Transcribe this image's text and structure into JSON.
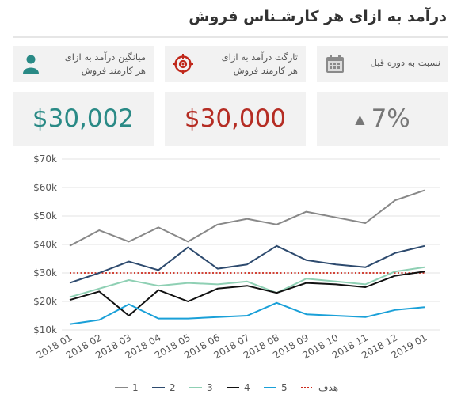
{
  "header": {
    "title": "درآمد به ازای هر کارشـناس فروش"
  },
  "kpis": [
    {
      "label_line1": "میانگین درآمد به ازای",
      "label_line2": "هر کارمند فروش",
      "icon": "person-icon",
      "value": "$30,002",
      "color": "#2a8a86"
    },
    {
      "label_line1": "تارگت درآمد به ازای",
      "label_line2": "هر کارمند فروش",
      "icon": "target-icon",
      "value": "$30,000",
      "color": "#b52d24"
    },
    {
      "label_line1": "نسبت به دوره قبل",
      "label_line2": "",
      "icon": "calendar-icon",
      "value": "7%",
      "trend": "▲",
      "color": "#777777"
    }
  ],
  "chart_data": {
    "type": "line",
    "categories": [
      "2018 01",
      "2018 02",
      "2018 03",
      "2018 04",
      "2018 05",
      "2018 06",
      "2018 07",
      "2018 08",
      "2018 09",
      "2018 10",
      "2018 11",
      "2018 12",
      "2019 01"
    ],
    "y_tick_labels": [
      "$10k",
      "$20k",
      "$30k",
      "$40k",
      "$50k",
      "$60k",
      "$70k"
    ],
    "ylim": [
      10000,
      70000
    ],
    "grid": true,
    "legend": "bottom",
    "series": [
      {
        "name": "1",
        "color": "#888888",
        "values": [
          39500,
          45000,
          41000,
          46000,
          41000,
          47000,
          49000,
          47000,
          51500,
          49500,
          47500,
          55500,
          59000
        ]
      },
      {
        "name": "2",
        "color": "#2d4a6e",
        "values": [
          26500,
          30000,
          34000,
          31000,
          39000,
          31500,
          33000,
          39500,
          34500,
          33000,
          32000,
          37000,
          39500
        ]
      },
      {
        "name": "3",
        "color": "#8fd0b4",
        "values": [
          21500,
          24500,
          27500,
          25500,
          26500,
          26000,
          27000,
          23000,
          28000,
          27000,
          26000,
          30500,
          32000
        ]
      },
      {
        "name": "4",
        "color": "#111111",
        "values": [
          20500,
          23500,
          15000,
          24000,
          20000,
          24500,
          25500,
          23000,
          26500,
          26000,
          25000,
          29000,
          30500
        ]
      },
      {
        "name": "5",
        "color": "#1aa0d8",
        "values": [
          12000,
          13500,
          19000,
          14000,
          14000,
          14500,
          15000,
          19500,
          15500,
          15000,
          14500,
          17000,
          18000
        ]
      }
    ],
    "target": {
      "name": "هدف",
      "value": 30000,
      "color": "#cc2a1d"
    }
  }
}
